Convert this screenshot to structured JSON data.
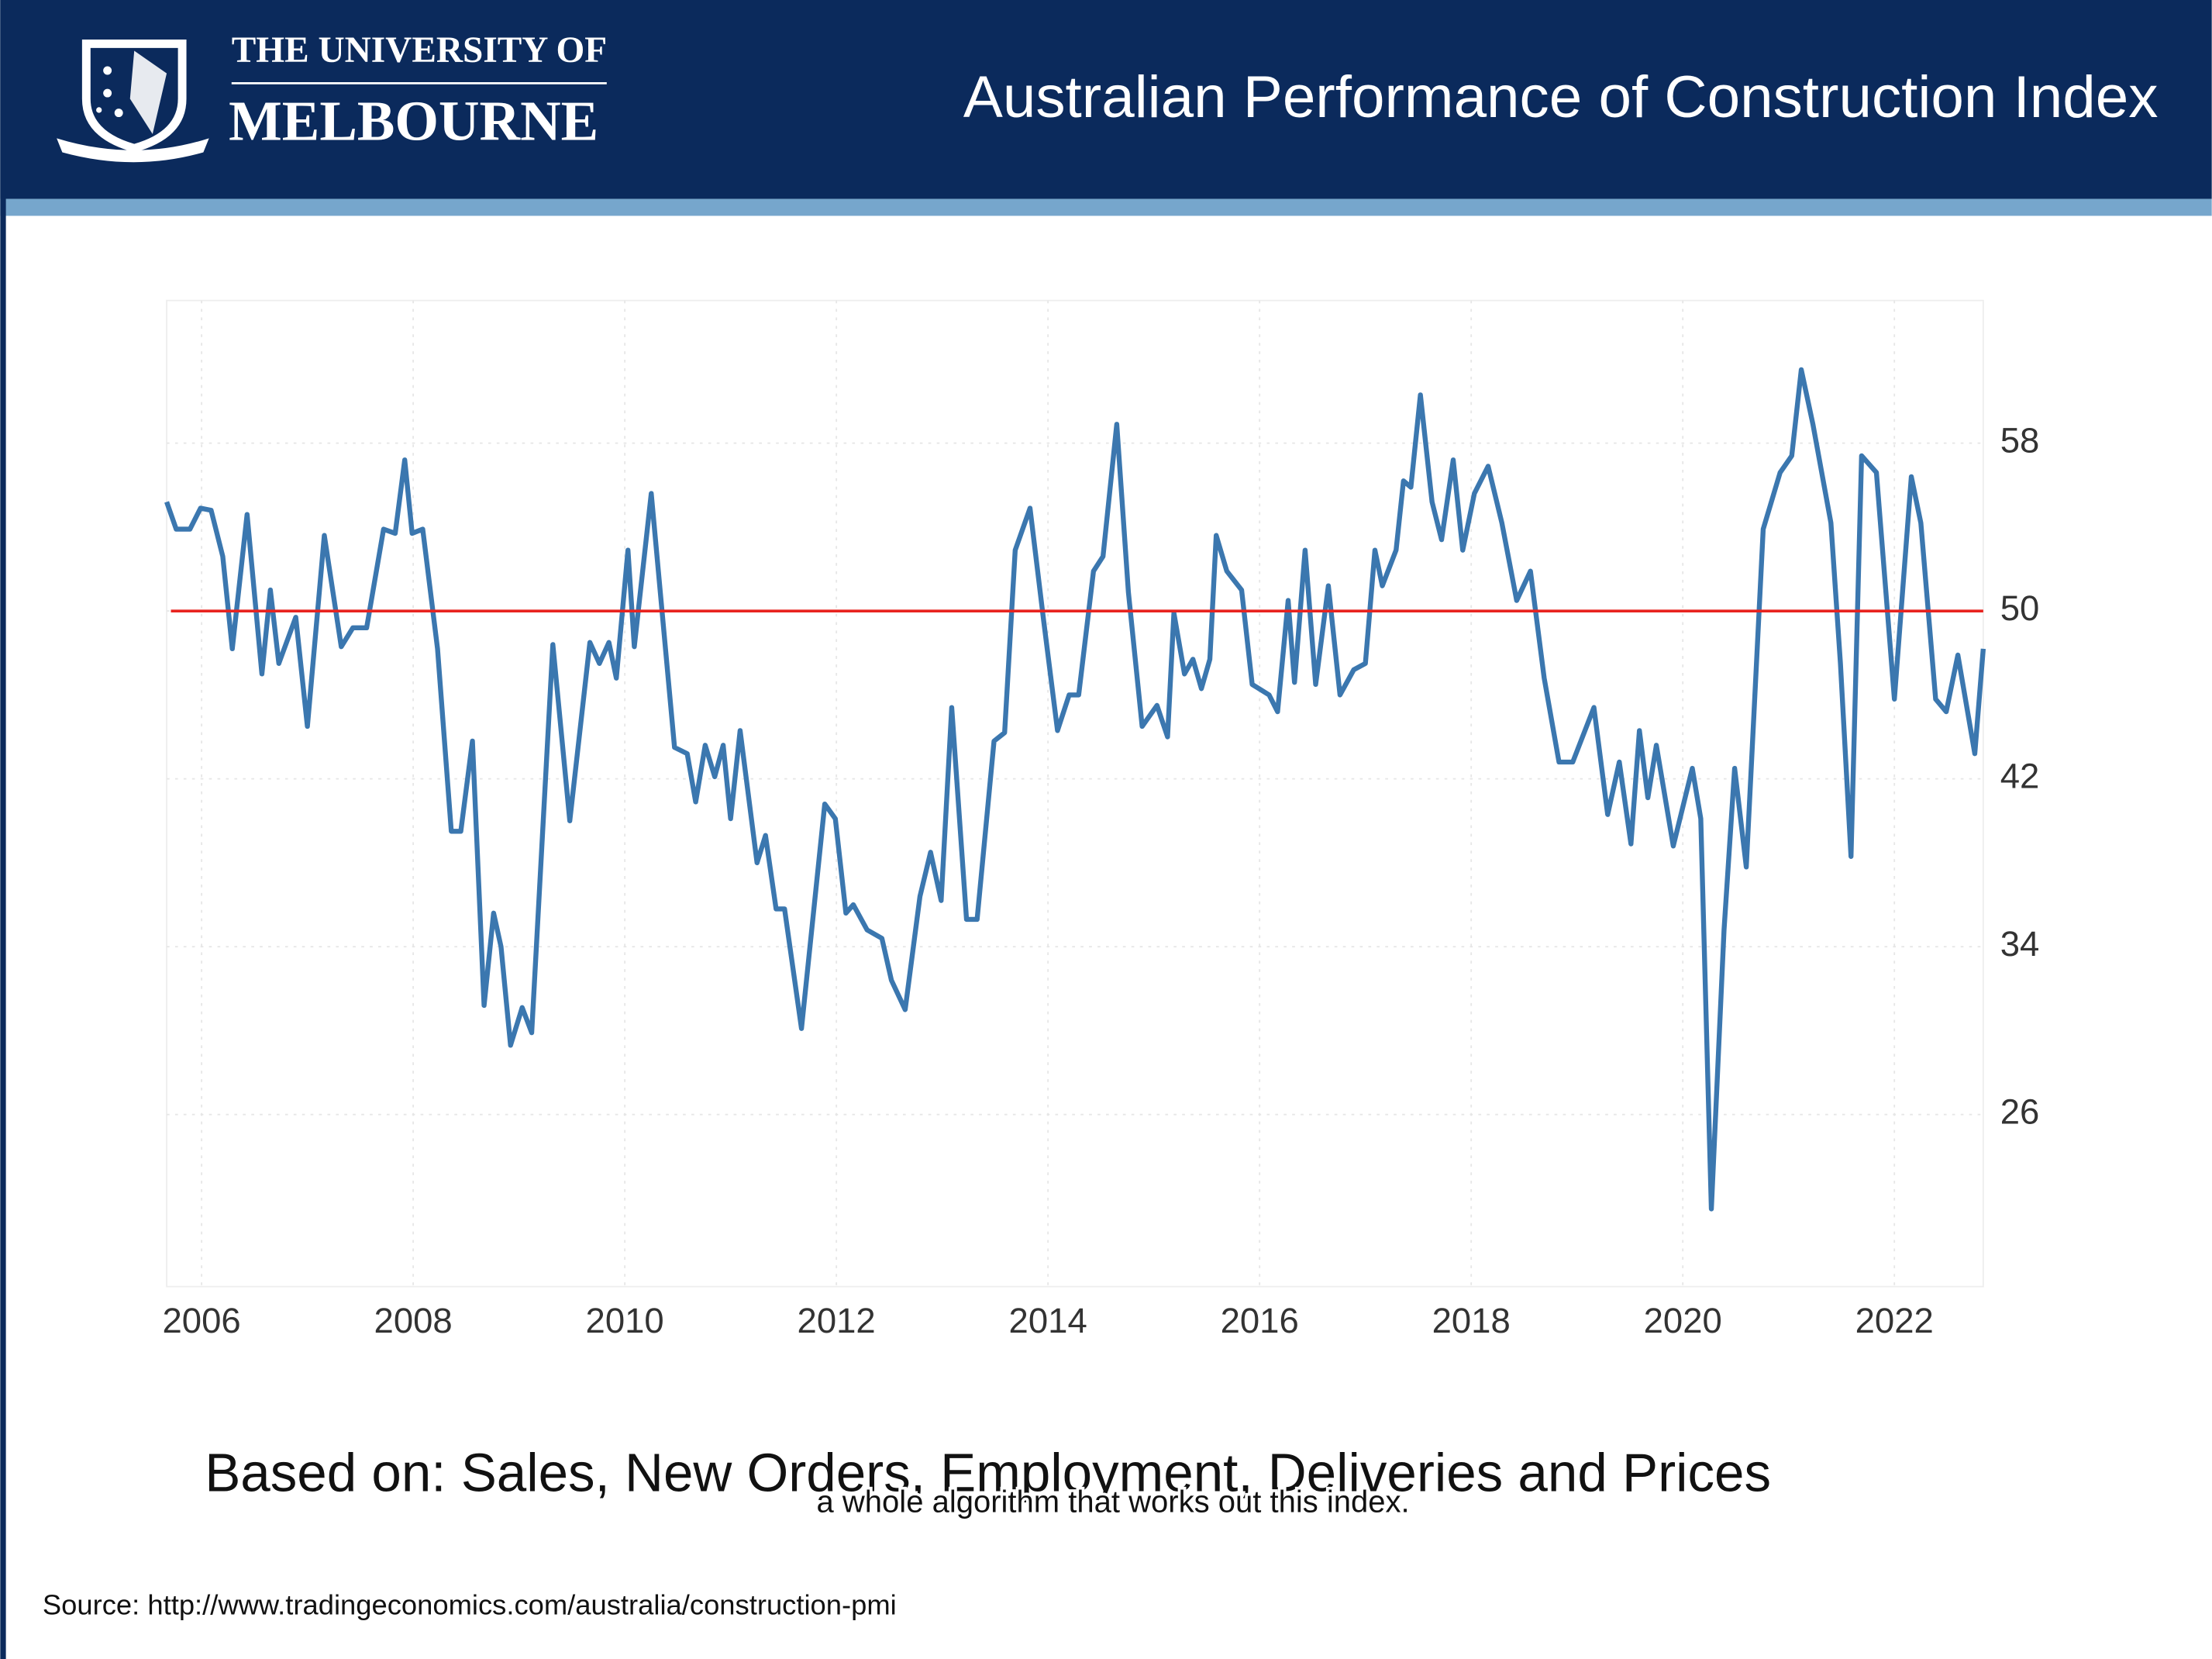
{
  "header": {
    "logo_line1": "THE UNIVERSITY OF",
    "logo_line2": "MELBOURNE"
  },
  "chart_data": {
    "type": "line",
    "title": "Australian Performance of Construction Index",
    "x": [
      2005.67,
      2005.76,
      2005.89,
      2005.99,
      2006.09,
      2006.2,
      2006.29,
      2006.43,
      2006.57,
      2006.65,
      2006.73,
      2006.89,
      2007.0,
      2007.16,
      2007.32,
      2007.43,
      2007.56,
      2007.72,
      2007.83,
      2007.92,
      2007.99,
      2008.09,
      2008.23,
      2008.36,
      2008.45,
      2008.56,
      2008.67,
      2008.76,
      2008.83,
      2008.92,
      2009.03,
      2009.12,
      2009.32,
      2009.48,
      2009.67,
      2009.76,
      2009.85,
      2009.92,
      2010.03,
      2010.09,
      2010.25,
      2010.47,
      2010.59,
      2010.67,
      2010.76,
      2010.85,
      2010.93,
      2011.0,
      2011.09,
      2011.25,
      2011.33,
      2011.43,
      2011.51,
      2011.67,
      2011.89,
      2011.99,
      2012.09,
      2012.16,
      2012.29,
      2012.43,
      2012.52,
      2012.65,
      2012.79,
      2012.89,
      2012.99,
      2013.09,
      2013.23,
      2013.33,
      2013.49,
      2013.59,
      2013.69,
      2013.83,
      2013.96,
      2014.09,
      2014.2,
      2014.29,
      2014.43,
      2014.52,
      2014.65,
      2014.76,
      2014.89,
      2015.03,
      2015.13,
      2015.19,
      2015.29,
      2015.37,
      2015.45,
      2015.53,
      2015.59,
      2015.69,
      2015.83,
      2015.93,
      2016.09,
      2016.17,
      2016.27,
      2016.33,
      2016.43,
      2016.53,
      2016.65,
      2016.76,
      2016.89,
      2017.0,
      2017.09,
      2017.16,
      2017.29,
      2017.36,
      2017.43,
      2017.52,
      2017.63,
      2017.72,
      2017.83,
      2017.92,
      2018.03,
      2018.16,
      2018.29,
      2018.43,
      2018.56,
      2018.69,
      2018.83,
      2018.96,
      2019.16,
      2019.29,
      2019.4,
      2019.51,
      2019.59,
      2019.67,
      2019.75,
      2019.91,
      2020.09,
      2020.17,
      2020.27,
      2020.39,
      2020.49,
      2020.6,
      2020.76,
      2020.92,
      2021.03,
      2021.12,
      2021.23,
      2021.4,
      2021.49,
      2021.59,
      2021.69,
      2021.83,
      2022.0,
      2022.16,
      2022.25,
      2022.39,
      2022.49,
      2022.6,
      2022.76,
      2022.84
    ],
    "values": [
      55.2,
      53.9,
      53.9,
      54.9,
      54.8,
      52.6,
      48.2,
      54.6,
      47.0,
      51.0,
      47.5,
      49.7,
      44.5,
      53.6,
      48.3,
      49.2,
      49.2,
      53.9,
      53.7,
      57.2,
      53.7,
      53.9,
      48.2,
      39.5,
      39.5,
      43.8,
      31.2,
      35.6,
      34.0,
      29.3,
      31.1,
      29.9,
      48.4,
      40.0,
      48.5,
      47.5,
      48.5,
      46.8,
      52.9,
      48.3,
      55.6,
      43.5,
      43.2,
      40.9,
      43.6,
      42.1,
      43.6,
      40.1,
      44.3,
      38.0,
      39.3,
      35.8,
      35.8,
      30.1,
      40.8,
      40.1,
      35.6,
      36.0,
      34.8,
      34.4,
      32.4,
      31.0,
      36.4,
      38.5,
      36.2,
      45.4,
      35.3,
      35.3,
      43.8,
      44.2,
      52.9,
      54.9,
      49.5,
      44.3,
      46.0,
      46.0,
      51.9,
      52.6,
      58.9,
      50.9,
      44.5,
      45.5,
      44.0,
      49.9,
      47.0,
      47.7,
      46.3,
      47.7,
      53.6,
      51.9,
      51.0,
      46.5,
      46.0,
      45.2,
      50.5,
      46.6,
      52.9,
      46.5,
      51.2,
      46.0,
      47.2,
      47.5,
      52.9,
      51.2,
      52.9,
      56.2,
      55.9,
      60.3,
      55.2,
      53.4,
      57.2,
      52.9,
      55.6,
      56.9,
      54.2,
      50.5,
      51.9,
      46.8,
      42.8,
      42.8,
      45.4,
      40.3,
      42.8,
      38.9,
      44.3,
      41.1,
      43.6,
      38.8,
      42.5,
      40.1,
      21.5,
      34.8,
      42.5,
      37.8,
      53.9,
      56.6,
      57.4,
      61.5,
      58.9,
      54.2,
      47.5,
      38.3,
      57.4,
      56.6,
      45.8,
      56.4,
      54.2,
      45.8,
      45.2,
      47.9,
      43.2,
      48.2
    ],
    "color": "#3b77af",
    "hline": {
      "value": 50,
      "color": "#e8231f"
    },
    "xlim": [
      2005.67,
      2022.84
    ],
    "xticks": [
      2006,
      2008,
      2010,
      2012,
      2014,
      2016,
      2018,
      2020,
      2022
    ],
    "ylim": [
      17.8,
      64.8
    ],
    "yticks": [
      26,
      34,
      42,
      50,
      58
    ],
    "grid": true,
    "caption": "Based on: Sales, New Orders, Employment, Deliveries and Prices",
    "subtitle_overlay": "a whole algorithm that works out this index.",
    "source": "Source: http://www.tradingeconomics.com/australia/construction-pmi"
  }
}
